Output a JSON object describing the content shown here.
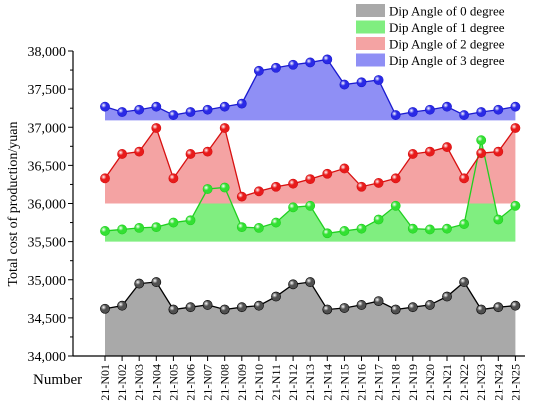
{
  "chart_data": {
    "type": "area",
    "xlabel": "Number",
    "ylabel": "Total cost of production/yuan",
    "ylim": [
      34000,
      38000
    ],
    "yticks": [
      34000,
      34500,
      35000,
      35500,
      36000,
      36500,
      37000,
      37500,
      38000
    ],
    "ytick_labels": [
      "34,000",
      "34,500",
      "35,000",
      "35,500",
      "36,000",
      "36,500",
      "37,000",
      "37,500",
      "38,000"
    ],
    "categories": [
      "21-N01",
      "21-N02",
      "21-N03",
      "21-N04",
      "21-N05",
      "21-N06",
      "21-N07",
      "21-N08",
      "21-N09",
      "21-N10",
      "21-N11",
      "21-N12",
      "21-N13",
      "21-N14",
      "21-N15",
      "21-N16",
      "21-N17",
      "21-N18",
      "21-N19",
      "21-N20",
      "21-N21",
      "21-N22",
      "21-N23",
      "21-N24",
      "21-N25"
    ],
    "legend_position": "top-right",
    "grid": false,
    "series": [
      {
        "name": "Dip Angle of 0 degree",
        "base": 34000,
        "fill": "#a9a9a9",
        "marker": "#505050",
        "line": "#000000",
        "values": [
          34620,
          34660,
          34950,
          34970,
          34610,
          34640,
          34670,
          34610,
          34640,
          34660,
          34780,
          34940,
          34970,
          34610,
          34630,
          34670,
          34720,
          34610,
          34640,
          34670,
          34780,
          34970,
          34610,
          34640,
          34660
        ]
      },
      {
        "name": "Dip Angle of 1 degree",
        "base": 35500,
        "fill": "#80ee80",
        "marker": "#33e033",
        "line": "#1fd01f",
        "values": [
          35640,
          35660,
          35680,
          35690,
          35750,
          35780,
          36190,
          36210,
          35690,
          35680,
          35750,
          35950,
          35970,
          35610,
          35640,
          35670,
          35790,
          35970,
          35670,
          35660,
          35670,
          35730,
          36830,
          35790,
          35970
        ]
      },
      {
        "name": "Dip Angle of 2 degree",
        "base": 36000,
        "fill": "#f4a3a3",
        "marker": "#e81b1b",
        "line": "#d81010",
        "values": [
          36330,
          36650,
          36680,
          36990,
          36330,
          36650,
          36680,
          36990,
          36090,
          36160,
          36220,
          36260,
          36320,
          36390,
          36460,
          36220,
          36270,
          36330,
          36650,
          36680,
          36740,
          36330,
          36660,
          36680,
          36990
        ]
      },
      {
        "name": "Dip Angle of 3 degree",
        "base": 37090,
        "fill": "#8f8ff5",
        "marker": "#2a2ae6",
        "line": "#1a1ad0",
        "values": [
          37270,
          37200,
          37230,
          37270,
          37160,
          37200,
          37230,
          37270,
          37310,
          37740,
          37780,
          37820,
          37850,
          37890,
          37560,
          37590,
          37620,
          37160,
          37200,
          37230,
          37270,
          37160,
          37200,
          37230,
          37270
        ]
      }
    ]
  }
}
